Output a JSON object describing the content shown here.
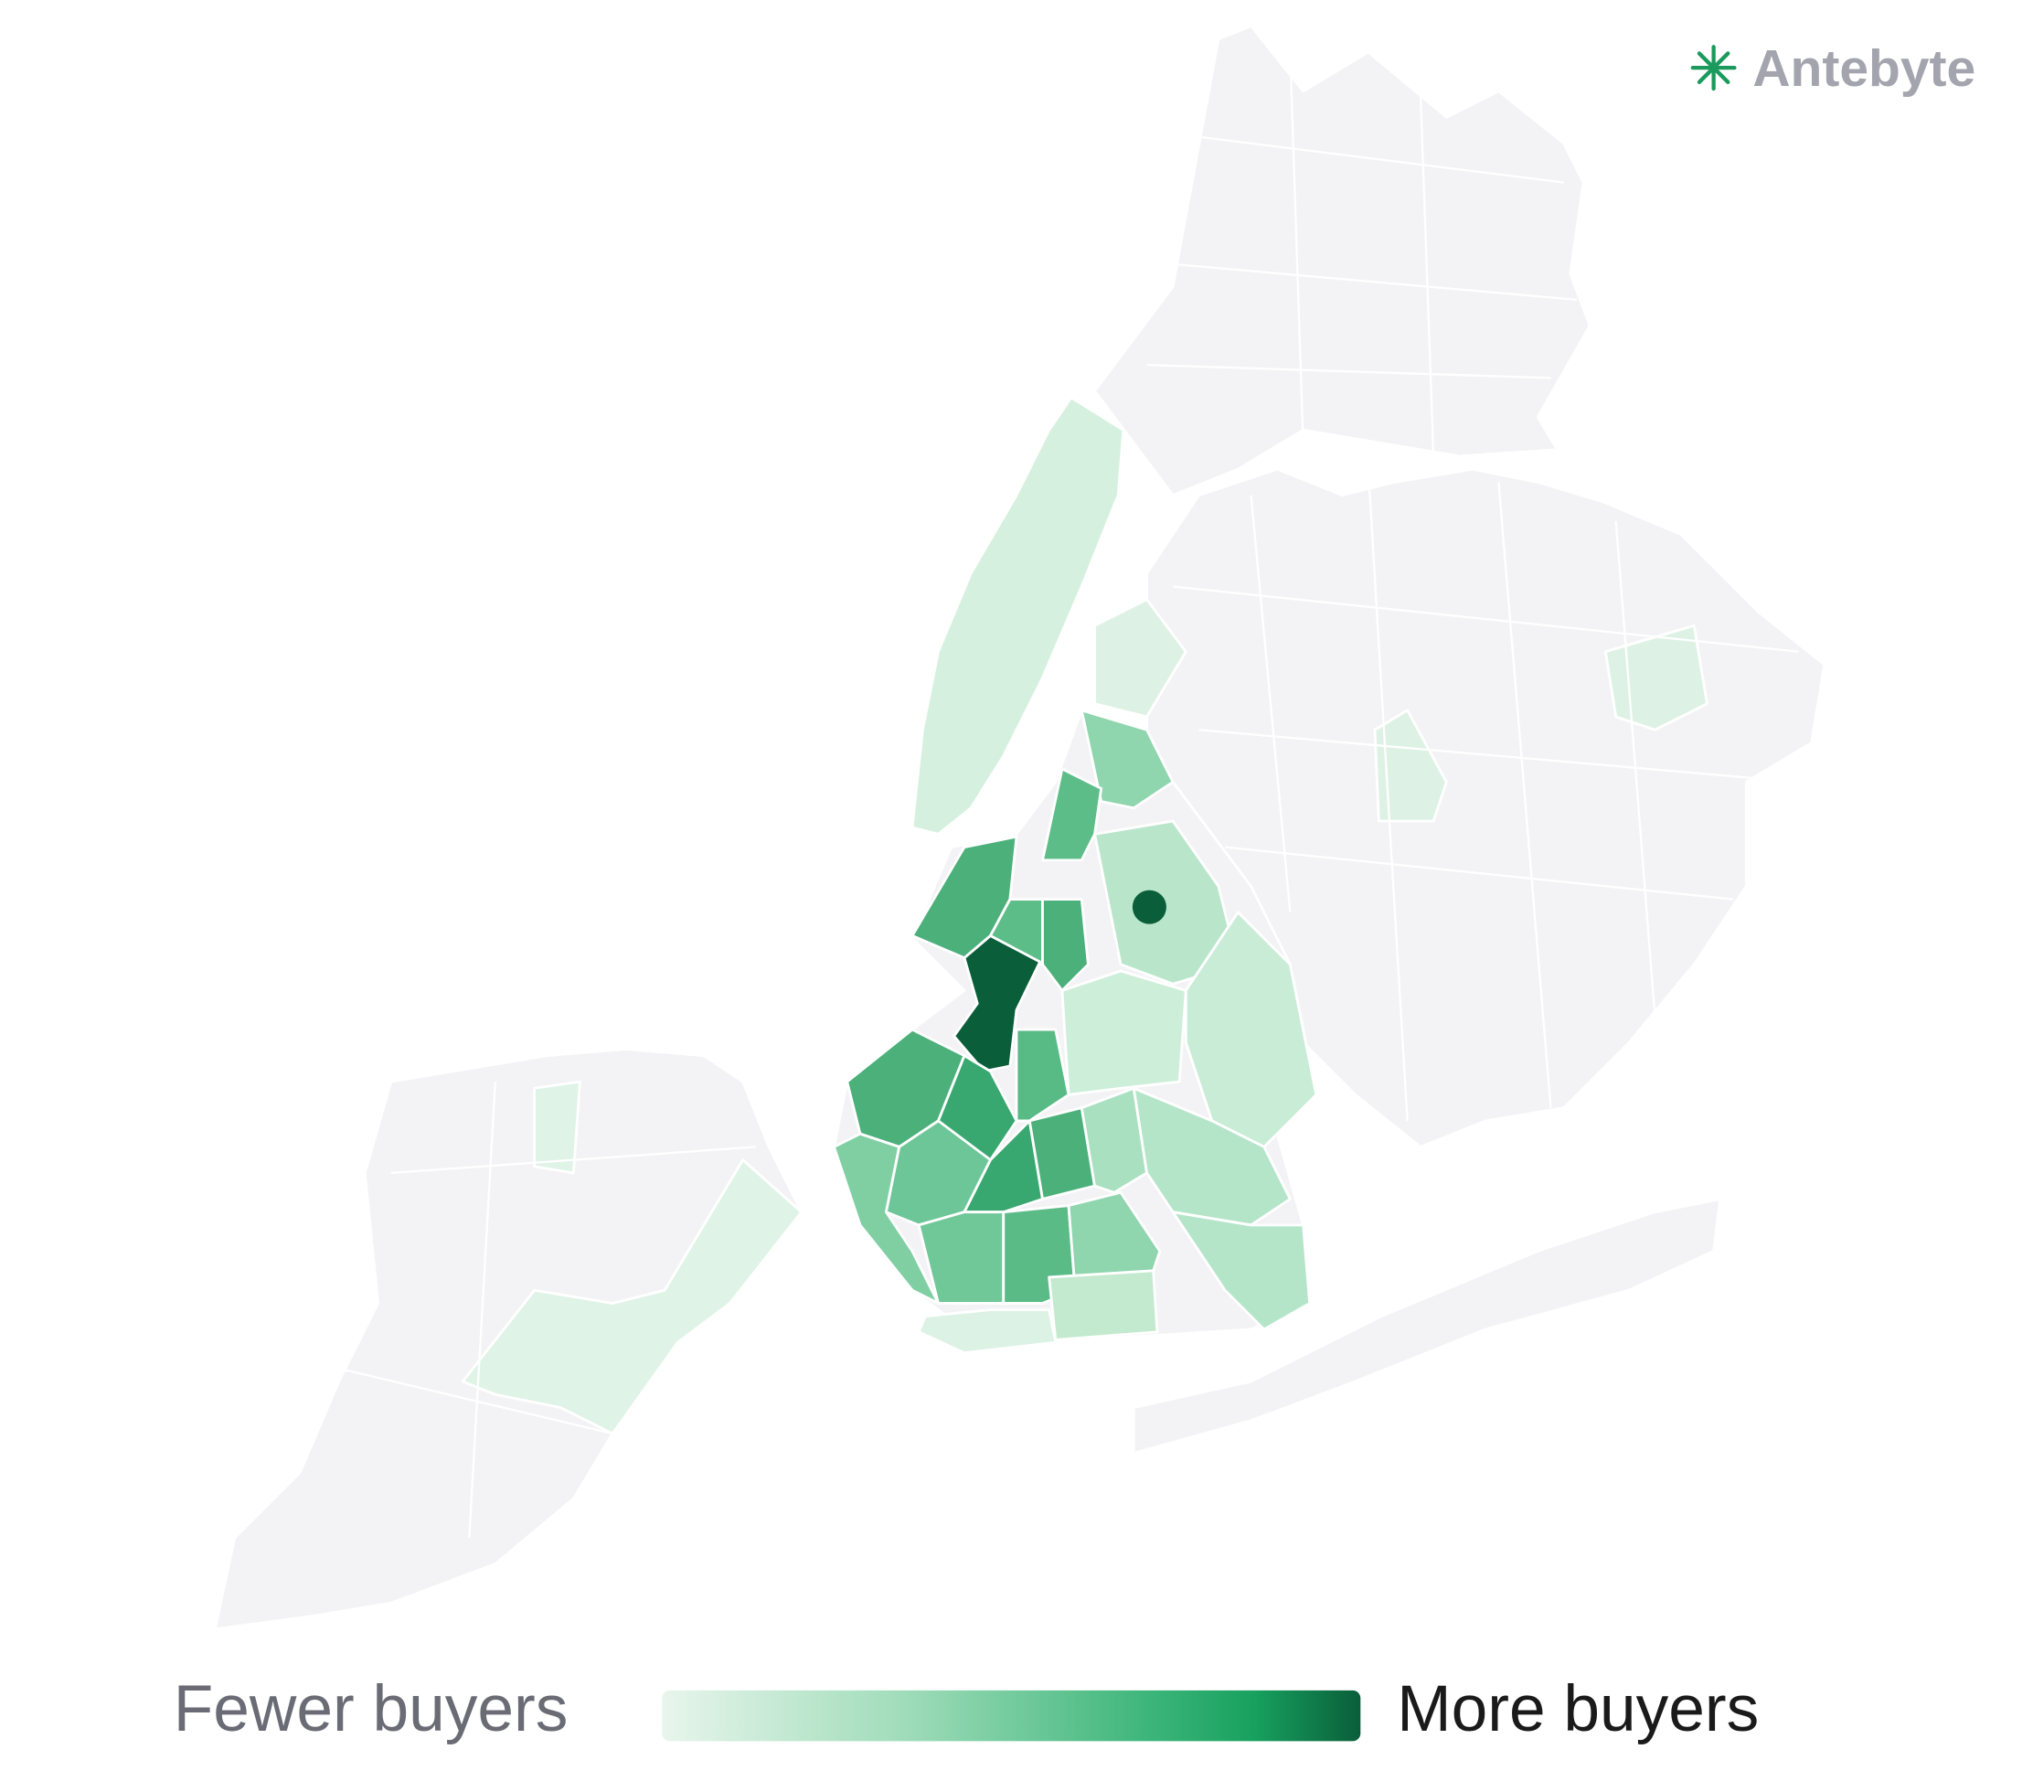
{
  "brand": {
    "name": "Antebyte"
  },
  "legend": {
    "low_label": "Fewer buyers",
    "high_label": "More buyers"
  }
}
